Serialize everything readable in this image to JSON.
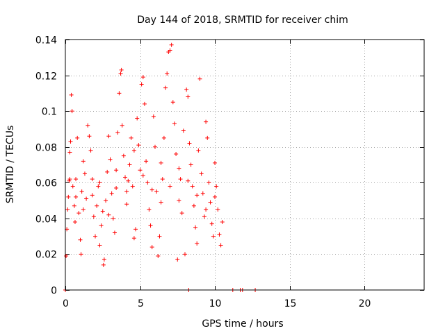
{
  "chart_data": {
    "type": "scatter",
    "title": "Day 144 of 2018, SRMTID for receiver chim",
    "xlabel": "GPS time / hours",
    "ylabel": "SRMTID / TECUs",
    "xlim": [
      0,
      24
    ],
    "ylim": [
      0,
      0.14
    ],
    "x_ticks": [
      0,
      5,
      10,
      15,
      20
    ],
    "x_tick_labels": [
      "0",
      "5",
      "10",
      "15",
      "20"
    ],
    "y_ticks": [
      0,
      0.02,
      0.04,
      0.06,
      0.08,
      0.1,
      0.12,
      0.14
    ],
    "y_tick_labels": [
      "0",
      "0.02",
      "0.04",
      "0.06",
      "0.08",
      "0.1",
      "0.12",
      "0.14"
    ],
    "grid": true,
    "marker": "+",
    "color": "#ff0000",
    "series": [
      {
        "name": "SRMTID",
        "points": [
          [
            0.05,
            0.019
          ],
          [
            0.1,
            0.034
          ],
          [
            0.15,
            0.045
          ],
          [
            0.2,
            0.052
          ],
          [
            0.25,
            0.061
          ],
          [
            0.3,
            0.077
          ],
          [
            0.35,
            0.083
          ],
          [
            0.4,
            0.109
          ],
          [
            0.45,
            0.1
          ],
          [
            0.5,
            0.058
          ],
          [
            0.6,
            0.047
          ],
          [
            0.65,
            0.038
          ],
          [
            0.7,
            0.062
          ],
          [
            0.8,
            0.085
          ],
          [
            0.9,
            0.043
          ],
          [
            1.0,
            0.028
          ],
          [
            1.05,
            0.02
          ],
          [
            1.1,
            0.055
          ],
          [
            1.2,
            0.072
          ],
          [
            1.3,
            0.065
          ],
          [
            1.4,
            0.051
          ],
          [
            1.5,
            0.092
          ],
          [
            1.6,
            0.086
          ],
          [
            1.7,
            0.078
          ],
          [
            1.8,
            0.062
          ],
          [
            1.9,
            0.041
          ],
          [
            2.0,
            0.03
          ],
          [
            2.1,
            0.047
          ],
          [
            2.2,
            0.058
          ],
          [
            2.3,
            0.025
          ],
          [
            2.4,
            0.036
          ],
          [
            2.5,
            0.044
          ],
          [
            2.55,
            0.014
          ],
          [
            2.6,
            0.017
          ],
          [
            2.7,
            0.05
          ],
          [
            2.8,
            0.066
          ],
          [
            2.9,
            0.086
          ],
          [
            3.0,
            0.073
          ],
          [
            3.1,
            0.054
          ],
          [
            3.2,
            0.04
          ],
          [
            3.3,
            0.032
          ],
          [
            3.4,
            0.057
          ],
          [
            3.5,
            0.088
          ],
          [
            3.6,
            0.11
          ],
          [
            3.7,
            0.121
          ],
          [
            3.75,
            0.123
          ],
          [
            3.8,
            0.092
          ],
          [
            3.9,
            0.075
          ],
          [
            4.0,
            0.063
          ],
          [
            4.1,
            0.048
          ],
          [
            4.2,
            0.061
          ],
          [
            4.3,
            0.07
          ],
          [
            4.4,
            0.085
          ],
          [
            4.5,
            0.058
          ],
          [
            4.6,
            0.029
          ],
          [
            4.7,
            0.034
          ],
          [
            4.8,
            0.096
          ],
          [
            4.9,
            0.081
          ],
          [
            5.0,
            0.067
          ],
          [
            5.1,
            0.115
          ],
          [
            5.2,
            0.119
          ],
          [
            5.3,
            0.104
          ],
          [
            5.4,
            0.072
          ],
          [
            5.5,
            0.06
          ],
          [
            5.6,
            0.045
          ],
          [
            5.7,
            0.036
          ],
          [
            5.8,
            0.024
          ],
          [
            5.9,
            0.097
          ],
          [
            6.0,
            0.08
          ],
          [
            6.1,
            0.055
          ],
          [
            6.2,
            0.019
          ],
          [
            6.3,
            0.03
          ],
          [
            6.4,
            0.071
          ],
          [
            6.5,
            0.062
          ],
          [
            6.6,
            0.085
          ],
          [
            6.7,
            0.113
          ],
          [
            6.8,
            0.121
          ],
          [
            6.9,
            0.133
          ],
          [
            7.0,
            0.134
          ],
          [
            7.1,
            0.137
          ],
          [
            7.2,
            0.105
          ],
          [
            7.3,
            0.093
          ],
          [
            7.4,
            0.076
          ],
          [
            7.5,
            0.017
          ],
          [
            7.6,
            0.05
          ],
          [
            7.7,
            0.062
          ],
          [
            7.8,
            0.043
          ],
          [
            7.9,
            0.089
          ],
          [
            8.0,
            0.02
          ],
          [
            8.1,
            0.112
          ],
          [
            8.2,
            0.108
          ],
          [
            8.3,
            0.082
          ],
          [
            8.4,
            0.07
          ],
          [
            8.5,
            0.058
          ],
          [
            8.6,
            0.047
          ],
          [
            8.7,
            0.035
          ],
          [
            8.8,
            0.026
          ],
          [
            8.9,
            0.078
          ],
          [
            9.0,
            0.118
          ],
          [
            9.1,
            0.065
          ],
          [
            9.2,
            0.054
          ],
          [
            9.3,
            0.041
          ],
          [
            9.4,
            0.094
          ],
          [
            9.5,
            0.085
          ],
          [
            9.6,
            0.06
          ],
          [
            9.7,
            0.049
          ],
          [
            9.8,
            0.037
          ],
          [
            9.9,
            0.03
          ],
          [
            10.0,
            0.071
          ],
          [
            10.1,
            0.058
          ],
          [
            10.2,
            0.045
          ],
          [
            10.3,
            0.031
          ],
          [
            10.4,
            0.025
          ],
          [
            10.5,
            0.038
          ],
          [
            0.3,
            0.062
          ],
          [
            0.7,
            0.052
          ],
          [
            1.2,
            0.045
          ],
          [
            1.8,
            0.053
          ],
          [
            2.3,
            0.06
          ],
          [
            2.9,
            0.042
          ],
          [
            3.4,
            0.067
          ],
          [
            4.1,
            0.055
          ],
          [
            4.6,
            0.078
          ],
          [
            5.2,
            0.064
          ],
          [
            5.8,
            0.056
          ],
          [
            6.4,
            0.049
          ],
          [
            7.0,
            0.058
          ],
          [
            7.6,
            0.068
          ],
          [
            8.2,
            0.061
          ],
          [
            8.8,
            0.053
          ],
          [
            9.4,
            0.045
          ],
          [
            10.0,
            0.052
          ],
          [
            0.0,
            0.0
          ],
          [
            8.25,
            0.0
          ],
          [
            11.2,
            0.0
          ],
          [
            11.7,
            0.0
          ],
          [
            11.85,
            0.0
          ],
          [
            12.7,
            0.0
          ]
        ]
      }
    ]
  }
}
